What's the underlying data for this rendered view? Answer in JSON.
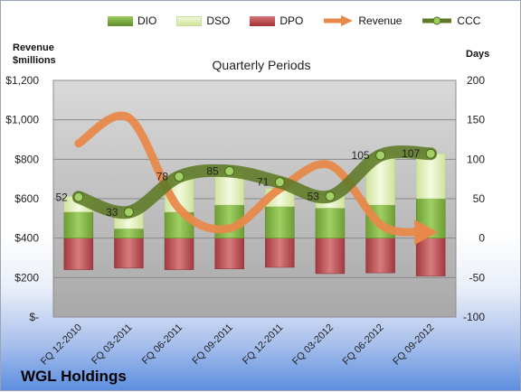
{
  "chart_data": {
    "type": "bar",
    "title": "Quarterly Periods",
    "company": "WGL Holdings",
    "categories": [
      "FQ 12-2010",
      "FQ 03-2011",
      "FQ 06-2011",
      "FQ 09-2011",
      "FQ 12-2011",
      "FQ 03-2012",
      "FQ 06-2012",
      "FQ 09-2012"
    ],
    "left_axis": {
      "label_line1": "Revenue",
      "label_line2": "$millions",
      "range": [
        0,
        1200
      ],
      "ticks": [
        "$-",
        "$200",
        "$400",
        "$600",
        "$800",
        "$1,000",
        "$1,200"
      ]
    },
    "right_axis": {
      "label": "Days",
      "range": [
        -100,
        200
      ],
      "ticks": [
        "-100",
        "-50",
        "0",
        "50",
        "100",
        "150",
        "200"
      ]
    },
    "legend": [
      "DIO",
      "DSO",
      "DPO",
      "Revenue",
      "CCC"
    ],
    "series": [
      {
        "name": "DIO",
        "axis": "right",
        "values": [
          33,
          12,
          33,
          42,
          40,
          38,
          42,
          50
        ],
        "color": "#7fb142"
      },
      {
        "name": "DSO",
        "axis": "right",
        "values": [
          20,
          23,
          45,
          43,
          23,
          17,
          63,
          57
        ],
        "color": "#dcedb2"
      },
      {
        "name": "DPO",
        "axis": "right",
        "values": [
          -40,
          -38,
          -40,
          -39,
          -37,
          -45,
          -44,
          -48
        ],
        "color": "#b5484c"
      },
      {
        "name": "Revenue",
        "axis": "left",
        "values": [
          880,
          1010,
          550,
          450,
          650,
          770,
          470,
          430
        ],
        "color": "#e8894a"
      },
      {
        "name": "CCC",
        "axis": "right",
        "values": [
          52,
          33,
          78,
          85,
          71,
          53,
          105,
          107
        ],
        "color": "#5d7a26"
      }
    ],
    "data_labels": [
      "52",
      "33",
      "78",
      "85",
      "71",
      "53",
      "105",
      "107"
    ],
    "grid": true,
    "legend_position": "top"
  }
}
